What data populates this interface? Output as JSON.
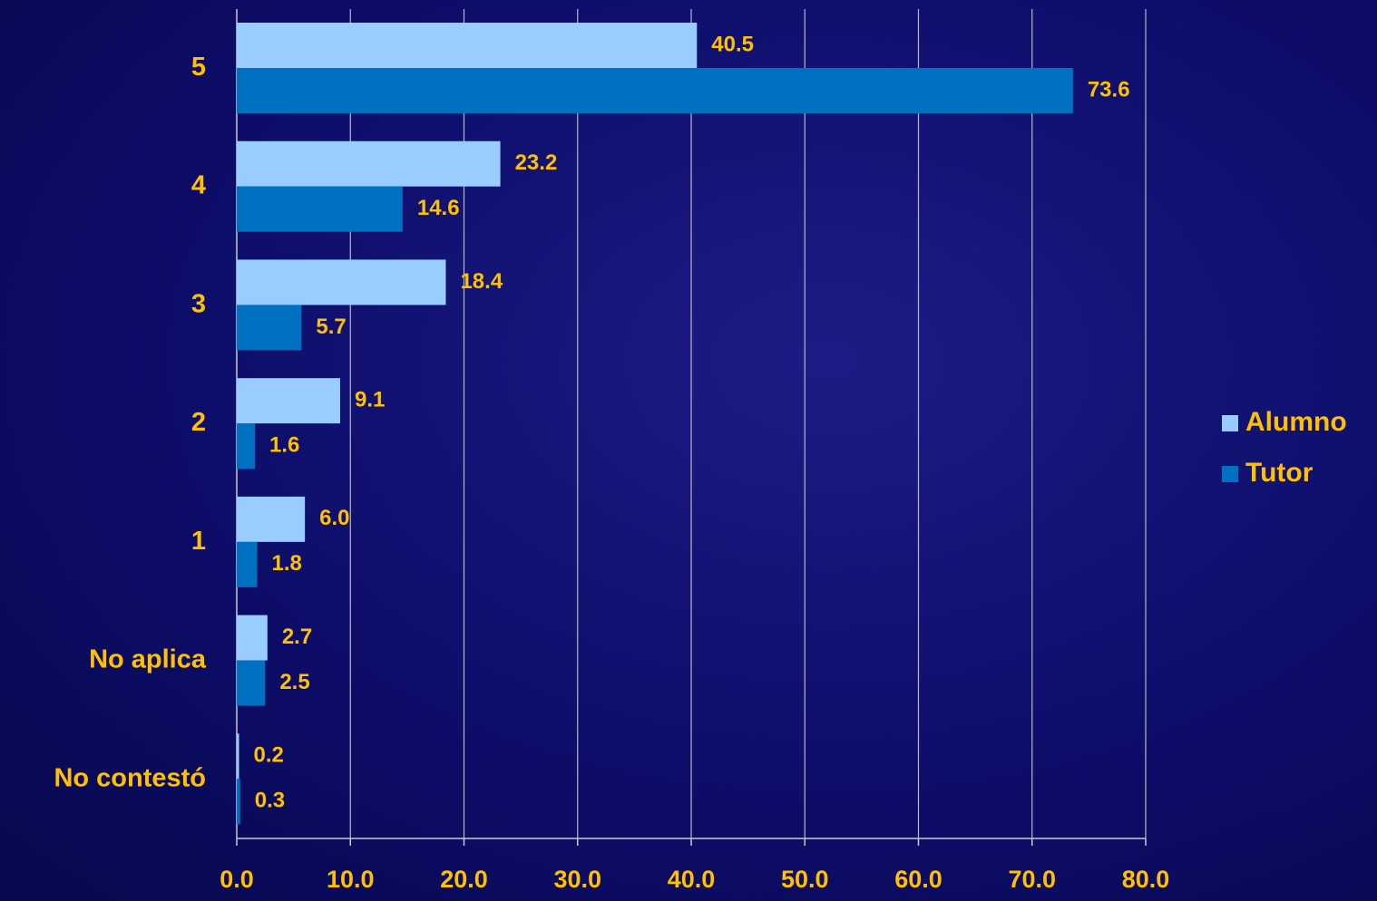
{
  "chart_data": {
    "type": "hbar",
    "categories": [
      "5",
      "4",
      "3",
      "2",
      "1",
      "No aplica",
      "No contestó"
    ],
    "series": [
      {
        "name": "Alumno",
        "color": "#99ccff",
        "values": [
          40.5,
          23.2,
          18.4,
          9.1,
          6,
          2.7,
          0.2
        ],
        "value_labels": [
          "40.5",
          "23.2",
          "18.4",
          "9.1",
          "6.0",
          "2.7",
          "0.2"
        ]
      },
      {
        "name": "Tutor",
        "color": "#0070c0",
        "values": [
          73.6,
          14.6,
          5.7,
          1.6,
          1.8,
          2.5,
          0.3
        ],
        "value_labels": [
          "73.6",
          "14.6",
          "5.7",
          "1.6",
          "1.8",
          "2.5",
          "0.3"
        ]
      }
    ],
    "xlim": [
      0,
      80
    ],
    "xticks": [
      {
        "value": 0,
        "label": "0.0"
      },
      {
        "value": 10,
        "label": "10.0"
      },
      {
        "value": 20,
        "label": "20.0"
      },
      {
        "value": 30,
        "label": "30.0"
      },
      {
        "value": 40,
        "label": "40.0"
      },
      {
        "value": 50,
        "label": "50.0"
      },
      {
        "value": 60,
        "label": "60.0"
      },
      {
        "value": 70,
        "label": "70.0"
      },
      {
        "value": 80,
        "label": "80.0"
      }
    ],
    "grid": true,
    "legend": "right"
  }
}
